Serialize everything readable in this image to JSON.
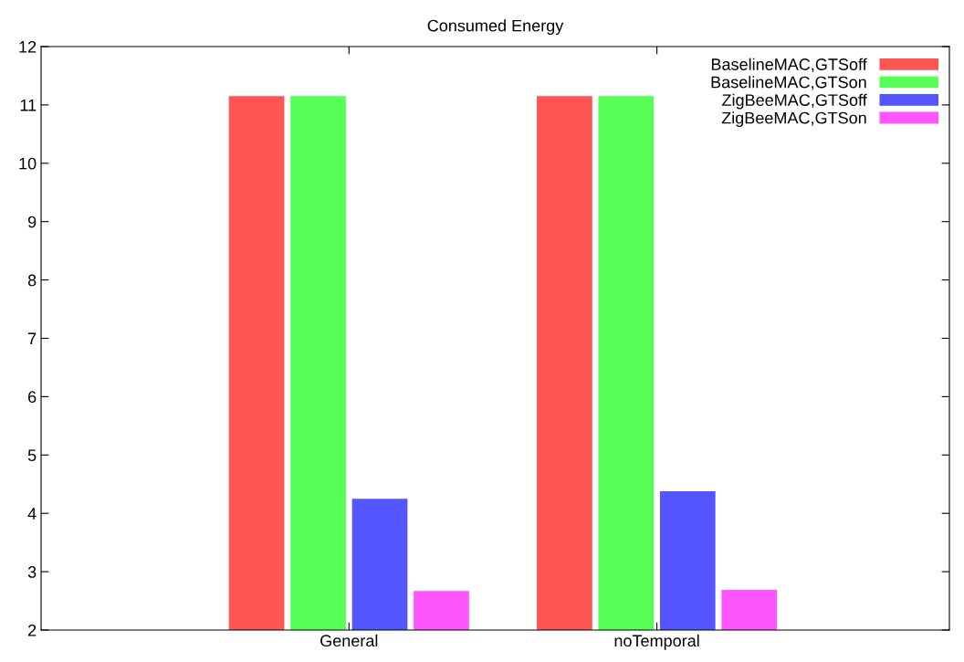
{
  "chart_data": {
    "type": "bar",
    "title": "Consumed Energy",
    "categories": [
      "General",
      "noTemporal"
    ],
    "series": [
      {
        "name": "BaselineMAC,GTSoff",
        "color": "#ff5555",
        "values": [
          11.15,
          11.15
        ]
      },
      {
        "name": "BaselineMAC,GTSon",
        "color": "#55ff55",
        "values": [
          11.15,
          11.15
        ]
      },
      {
        "name": "ZigBeeMAC,GTSoff",
        "color": "#5555ff",
        "values": [
          4.25,
          4.38
        ]
      },
      {
        "name": "ZigBeeMAC,GTSon",
        "color": "#ff55ff",
        "values": [
          2.67,
          2.69
        ]
      }
    ],
    "ylim": [
      2,
      12
    ],
    "yticks": [
      2,
      3,
      4,
      5,
      6,
      7,
      8,
      9,
      10,
      11,
      12
    ],
    "grid": false,
    "legend": "top right"
  }
}
